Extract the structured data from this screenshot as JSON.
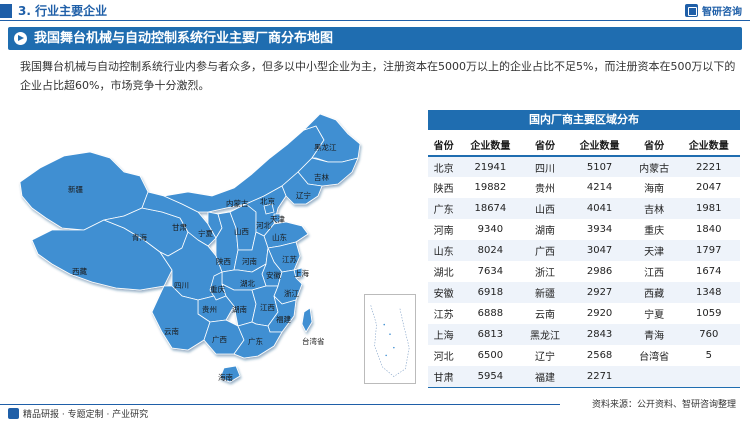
{
  "header": {
    "section_title": "3. 行业主要企业",
    "brand_name": "智研咨询"
  },
  "banner": {
    "title": "我国舞台机械与自动控制系统行业主要厂商分布地图"
  },
  "intro": "我国舞台机械与自动控制系统行业内参与者众多，但多以中小型企业为主，注册资本在5000万以上的企业占比不足5%，而注册资本在500万以下的企业占比超60%，市场竞争十分激烈。",
  "map": {
    "labels": {
      "xinjiang": "新疆",
      "xizang": "西藏",
      "qinghai": "青海",
      "gansu": "甘肃",
      "neimenggu": "内蒙古",
      "ningxia": "宁夏",
      "shaanxi": "陕西",
      "shanxi": "山西",
      "beijing": "北京",
      "tianjin": "天津",
      "hebei": "河北",
      "shandong": "山东",
      "henan": "河南",
      "heilongjiang": "黑龙江",
      "jilin": "吉林",
      "liaoning": "辽宁",
      "sichuan": "四川",
      "chongqing": "重庆",
      "hubei": "湖北",
      "anhui": "安徽",
      "jiangsu": "江苏",
      "shanghai": "上海",
      "zhejiang": "浙江",
      "guizhou": "贵州",
      "hunan": "湖南",
      "jiangxi": "江西",
      "fujian": "福建",
      "yunnan": "云南",
      "guangxi": "广西",
      "guangdong": "广东",
      "taiwan": "台湾省",
      "hainan": "海南"
    }
  },
  "table": {
    "title": "国内厂商主要区域分布",
    "headers": [
      "省份",
      "企业数量",
      "省份",
      "企业数量",
      "省份",
      "企业数量"
    ],
    "rows": [
      [
        "北京",
        "21941",
        "四川",
        "5107",
        "内蒙古",
        "2221"
      ],
      [
        "陕西",
        "19882",
        "贵州",
        "4214",
        "海南",
        "2047"
      ],
      [
        "广东",
        "18674",
        "山西",
        "4041",
        "吉林",
        "1981"
      ],
      [
        "河南",
        "9340",
        "湖南",
        "3934",
        "重庆",
        "1840"
      ],
      [
        "山东",
        "8024",
        "广西",
        "3047",
        "天津",
        "1797"
      ],
      [
        "湖北",
        "7634",
        "浙江",
        "2986",
        "江西",
        "1674"
      ],
      [
        "安徽",
        "6918",
        "新疆",
        "2927",
        "西藏",
        "1348"
      ],
      [
        "江苏",
        "6888",
        "云南",
        "2920",
        "宁夏",
        "1059"
      ],
      [
        "上海",
        "6813",
        "黑龙江",
        "2843",
        "青海",
        "760"
      ],
      [
        "河北",
        "6500",
        "辽宁",
        "2568",
        "台湾省",
        "5"
      ],
      [
        "甘肃",
        "5954",
        "福建",
        "2271",
        "",
        ""
      ]
    ]
  },
  "source": "资料来源：公开资料、智研咨询整理",
  "footer": "精品研报 · 专题定制 · 产业研究",
  "colors": {
    "brand_blue": "#1f5fa8",
    "banner_blue": "#1f6db0",
    "map_fill": "#3f8fd2",
    "map_fill_dark": "#2f78bf",
    "table_stripe": "#eef3fa"
  }
}
